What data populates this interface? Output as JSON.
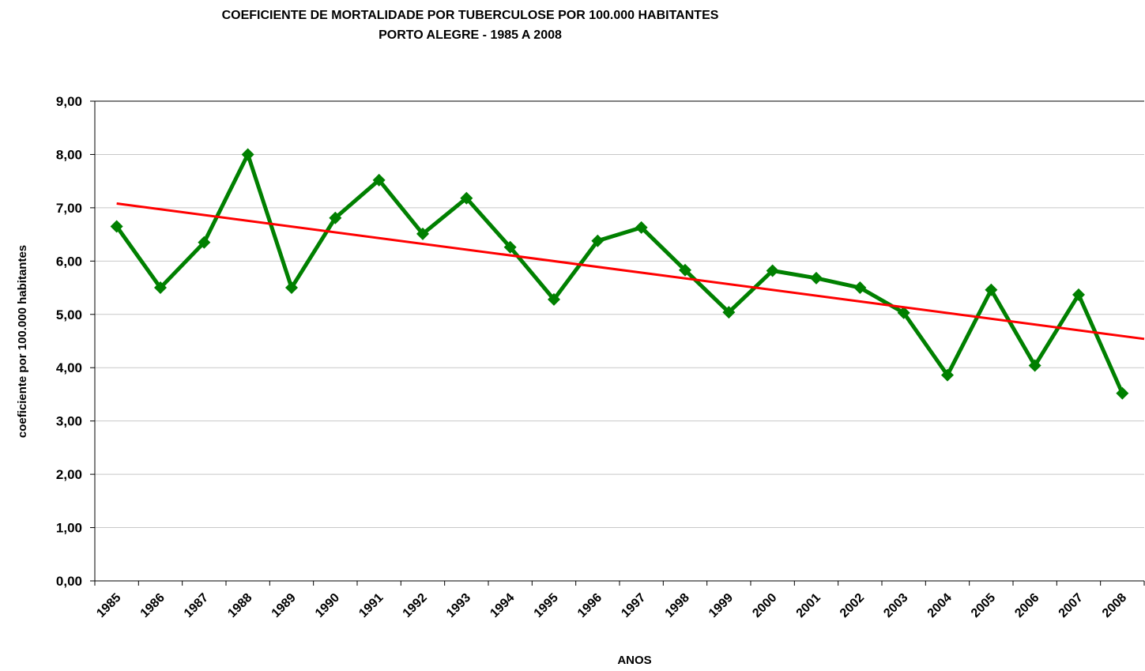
{
  "chart_data": {
    "type": "line",
    "title": "COEFICIENTE DE MORTALIDADE POR TUBERCULOSE POR 100.000 HABITANTES",
    "subtitle": "PORTO ALEGRE - 1985 A 2008",
    "x_label": "ANOS",
    "y_label": "coeficiente por 100.000 habitantes",
    "categories": [
      "1985",
      "1986",
      "1987",
      "1988",
      "1989",
      "1990",
      "1991",
      "1992",
      "1993",
      "1994",
      "1995",
      "1996",
      "1997",
      "1998",
      "1999",
      "2000",
      "2001",
      "2002",
      "2003",
      "2004",
      "2005",
      "2006",
      "2007",
      "2008"
    ],
    "series": [
      {
        "color": "#008000",
        "values": [
          6.65,
          5.5,
          6.35,
          8.0,
          5.5,
          6.81,
          7.52,
          6.51,
          7.18,
          6.26,
          5.28,
          6.38,
          6.63,
          5.83,
          5.04,
          5.82,
          5.68,
          5.5,
          5.03,
          3.86,
          5.46,
          4.04,
          5.37,
          3.52
        ]
      }
    ],
    "trendline": {
      "color": "#ff0000",
      "start": 7.08,
      "end": 4.54
    },
    "ylim": [
      0,
      9
    ],
    "yticks": [
      {
        "value": 0,
        "label": "0,00"
      },
      {
        "value": 1,
        "label": "1,00"
      },
      {
        "value": 2,
        "label": "2,00"
      },
      {
        "value": 3,
        "label": "3,00"
      },
      {
        "value": 4,
        "label": "4,00"
      },
      {
        "value": 5,
        "label": "5,00"
      },
      {
        "value": 6,
        "label": "6,00"
      },
      {
        "value": 7,
        "label": "7,00"
      },
      {
        "value": 8,
        "label": "8,00"
      },
      {
        "value": 9,
        "label": "9,00"
      }
    ],
    "grid": true
  }
}
